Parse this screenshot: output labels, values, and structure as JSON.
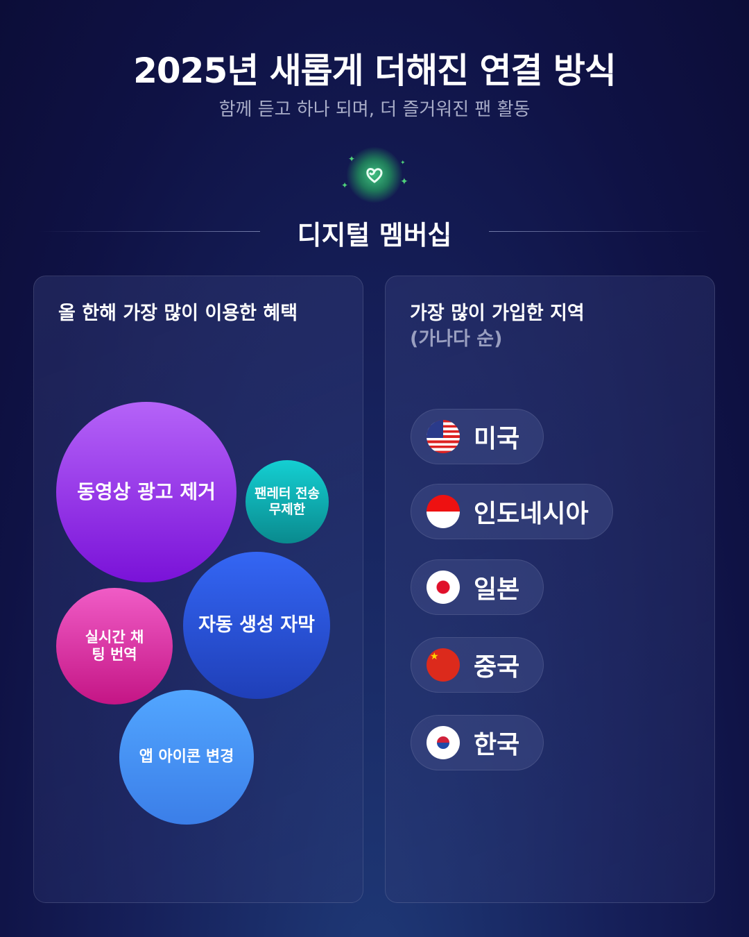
{
  "header": {
    "title": "2025년 새롭게 더해진 연결 방식",
    "subtitle": "함께 듣고 하나 되며, 더 즐거워진 팬 활동"
  },
  "section": {
    "title": "디지털 멤버십",
    "icon": "heart-logo-icon"
  },
  "left_card": {
    "title": "올 한해 가장 많이 이용한 혜택",
    "bubbles": [
      {
        "label": "동영상 광고 제거",
        "color": "#9b3cf0"
      },
      {
        "label": "팬레터 전송 무제한",
        "color": "#0fb5b8"
      },
      {
        "label": "자동 생성 자막",
        "color": "#2f56e8"
      },
      {
        "label": "실시간 채팅 번역",
        "color": "#e23fa8"
      },
      {
        "label": "앱 아이콘 변경",
        "color": "#3e8ff5"
      }
    ]
  },
  "right_card": {
    "title": "가장 많이 가입한 지역",
    "subtitle": "(가나다 순)",
    "regions": [
      {
        "label": "미국",
        "flag": "us-flag-icon"
      },
      {
        "label": "인도네시아",
        "flag": "indonesia-flag-icon"
      },
      {
        "label": "일본",
        "flag": "japan-flag-icon"
      },
      {
        "label": "중국",
        "flag": "china-flag-icon"
      },
      {
        "label": "한국",
        "flag": "korea-flag-icon"
      }
    ]
  }
}
